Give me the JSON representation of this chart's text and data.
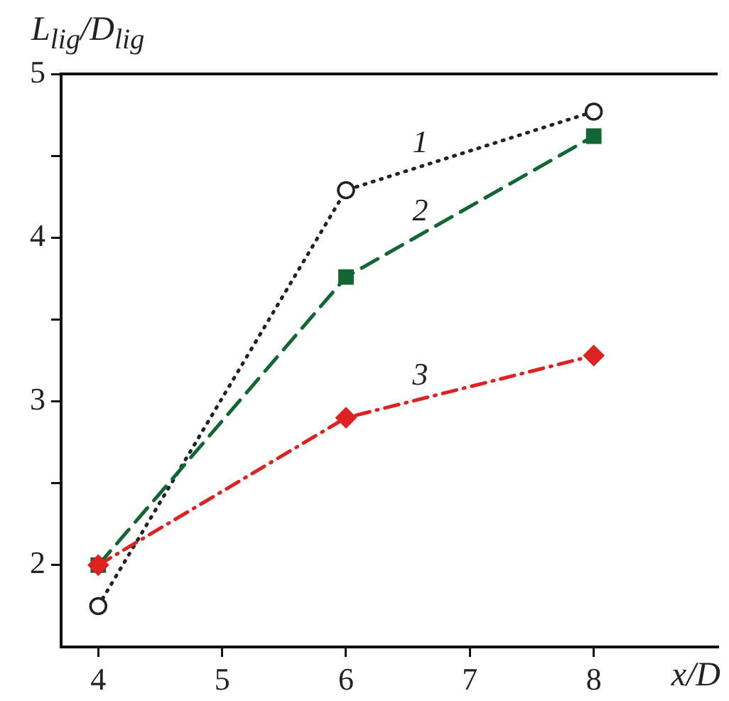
{
  "chart_data": {
    "type": "line",
    "ylabel": "L$_{lig}$/D$_{lig}$",
    "xlabel": "x/D",
    "x": [
      4,
      6,
      8
    ],
    "series": [
      {
        "name": "1",
        "color": "#222222",
        "values": [
          1.75,
          4.29,
          4.77
        ],
        "marker": "circle",
        "line_style": "dotted"
      },
      {
        "name": "2",
        "color": "#116633",
        "values": [
          2.0,
          3.76,
          4.62
        ],
        "marker": "square",
        "line_style": "dashed"
      },
      {
        "name": "3",
        "color": "#dd2222",
        "values": [
          2.0,
          2.9,
          3.28
        ],
        "marker": "diamond",
        "line_style": "dashdot"
      }
    ],
    "xlim": [
      3.7,
      9
    ],
    "xticks": [
      4,
      5,
      6,
      7,
      8
    ],
    "ylim": [
      1.5,
      5
    ],
    "yticks": [
      2,
      {
        "value": 2.5,
        "label": null
      },
      3,
      {
        "value": 3.5,
        "label": null
      },
      4,
      {
        "value": 4.5,
        "label": null
      },
      5
    ],
    "grid": false,
    "legend": false
  }
}
